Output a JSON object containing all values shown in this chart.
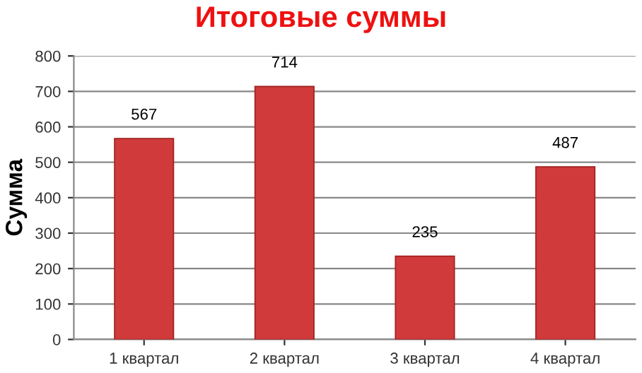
{
  "chart_data": {
    "type": "bar",
    "title": "Итоговые суммы",
    "ylabel": "Сумма",
    "categories": [
      "1 квартал",
      "2 квартал",
      "3 квартал",
      "4 квартал"
    ],
    "values": [
      567,
      714,
      235,
      487
    ],
    "color": "#d03a3a",
    "ylim": [
      0,
      800
    ],
    "yticks": [
      0,
      100,
      200,
      300,
      400,
      500,
      600,
      700,
      800
    ],
    "grid": "y",
    "data_labels": true
  }
}
